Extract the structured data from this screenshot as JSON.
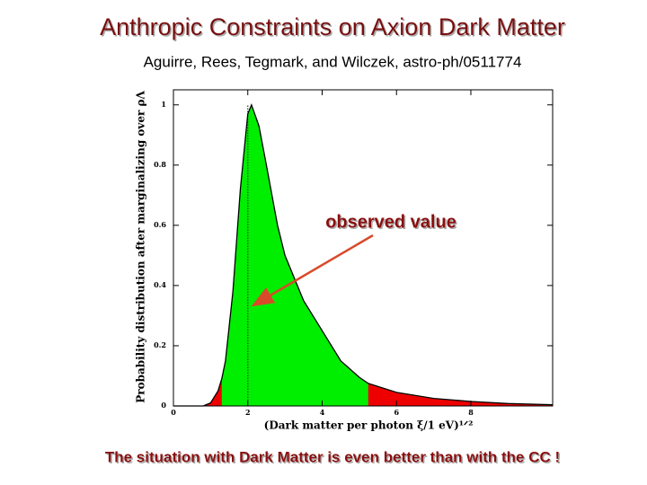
{
  "chart_data": {
    "type": "area",
    "title": "Anthropic Constraints on Axion Dark Matter",
    "subtitle": "Aguirre, Rees, Tegmark, and Wilczek, astro-ph/0511774",
    "xlabel": "(Dark matter per photon ξ/1 eV)¹ᐟ²",
    "ylabel": "Probability distribution after marginalizing over ρΛ",
    "annotation": "observed value",
    "footer": "The situation with Dark Matter is even better than with the CC !",
    "x": [
      0,
      0.8,
      1.0,
      1.2,
      1.3,
      1.4,
      1.6,
      1.8,
      2.0,
      2.1,
      2.3,
      2.5,
      2.8,
      3.0,
      3.5,
      4.0,
      4.5,
      5.0,
      5.24,
      6.0,
      7.0,
      8.0,
      9.0,
      10.2
    ],
    "series": [
      {
        "color": "#000000",
        "values": [
          0,
          0,
          0.01,
          0.05,
          0.09,
          0.15,
          0.38,
          0.72,
          0.97,
          1.0,
          0.93,
          0.8,
          0.6,
          0.5,
          0.35,
          0.25,
          0.15,
          0.095,
          0.075,
          0.045,
          0.025,
          0.015,
          0.008,
          0.004
        ]
      }
    ],
    "fill_color": "#ee0000",
    "highlight": {
      "range": [
        1.3,
        5.24
      ],
      "color": "#00ee00"
    },
    "marker_x": 2,
    "xlim": [
      0,
      10.2
    ],
    "ylim": [
      0,
      1.05
    ],
    "xticks": [
      0,
      2,
      4,
      6,
      8
    ],
    "yticks": [
      0,
      0.2,
      0.4,
      0.6,
      0.8,
      1
    ]
  }
}
